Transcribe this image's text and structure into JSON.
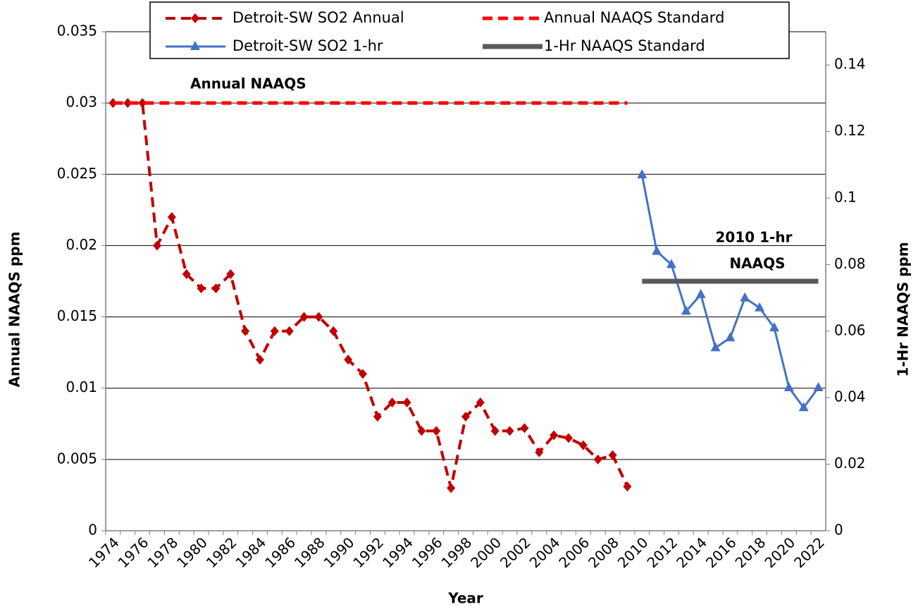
{
  "chart_data": {
    "type": "line",
    "x_label": "Year",
    "y_label": "Annual NAAQS ppm",
    "y2_label": "1-Hr NAAQS ppm",
    "annotations": [
      "Annual    NAAQS",
      "2010 1-hr",
      "NAAQS"
    ],
    "categories": [
      "1974",
      null,
      "1976",
      null,
      "1978",
      null,
      "1980",
      null,
      "1982",
      null,
      "1984",
      null,
      "1986",
      null,
      "1988",
      null,
      "1990",
      null,
      "1992",
      null,
      "1994",
      null,
      "1996",
      null,
      "1998",
      null,
      "2000",
      null,
      "2002",
      null,
      "2004",
      null,
      "2006",
      null,
      "2008",
      null,
      "2010",
      null,
      "2012",
      null,
      "2014",
      null,
      "2016",
      null,
      "2018",
      null,
      "2020",
      null,
      "2022"
    ],
    "ylim": [
      0,
      0.035
    ],
    "yticks": [
      0,
      0.005,
      0.01,
      0.015,
      0.02,
      0.025,
      0.03,
      0.035
    ],
    "y2lim": [
      0,
      0.15
    ],
    "y2ticks": [
      0,
      0.02,
      0.04,
      0.06,
      0.08,
      0.1,
      0.12,
      0.14
    ],
    "grid": true,
    "legend": "top",
    "series": [
      {
        "name": "Detroit-SW SO2 Annual",
        "color": "#c00000",
        "dash": true,
        "marker": "diamond",
        "width": 4,
        "values": [
          0.03,
          0.03,
          0.03,
          0.02,
          0.022,
          0.018,
          0.017,
          0.017,
          0.018,
          0.014,
          0.012,
          0.014,
          0.014,
          0.015,
          0.015,
          0.014,
          0.012,
          0.011,
          0.008,
          0.009,
          0.009,
          0.007,
          0.007,
          0.003,
          0.008,
          0.009,
          0.007,
          0.007,
          0.0072,
          0.0055,
          0.0067,
          0.0065,
          0.006,
          0.005,
          0.0053,
          0.0031,
          null,
          null,
          null,
          null,
          null,
          null,
          null,
          null,
          null,
          null,
          null,
          null,
          null
        ]
      },
      {
        "name": "Annual NAAQS Standard",
        "color": "#ff0000",
        "dash": true,
        "width": 5,
        "values": [
          0.03,
          0.03,
          0.03,
          0.03,
          0.03,
          0.03,
          0.03,
          0.03,
          0.03,
          0.03,
          0.03,
          0.03,
          0.03,
          0.03,
          0.03,
          0.03,
          0.03,
          0.03,
          0.03,
          0.03,
          0.03,
          0.03,
          0.03,
          0.03,
          0.03,
          0.03,
          0.03,
          0.03,
          0.03,
          0.03,
          0.03,
          0.03,
          0.03,
          0.03,
          0.03,
          0.03,
          null,
          null,
          null,
          null,
          null,
          null,
          null,
          null,
          null,
          null,
          null,
          null,
          null
        ]
      },
      {
        "name": "Detroit-SW SO2 1-hr",
        "color": "#4472c4",
        "dash": false,
        "marker": "triangle",
        "width": 3,
        "axis": "y2",
        "values": [
          null,
          null,
          null,
          null,
          null,
          null,
          null,
          null,
          null,
          null,
          null,
          null,
          null,
          null,
          null,
          null,
          null,
          null,
          null,
          null,
          null,
          null,
          null,
          null,
          null,
          null,
          null,
          null,
          null,
          null,
          null,
          null,
          null,
          null,
          null,
          null,
          0.107,
          0.084,
          0.08,
          0.066,
          0.071,
          0.055,
          0.058,
          0.07,
          0.067,
          0.061,
          0.043,
          0.037,
          0.043
        ]
      },
      {
        "name": "1-Hr NAAQS Standard",
        "color": "#595959",
        "dash": false,
        "width": 7,
        "axis": "y2",
        "values": [
          null,
          null,
          null,
          null,
          null,
          null,
          null,
          null,
          null,
          null,
          null,
          null,
          null,
          null,
          null,
          null,
          null,
          null,
          null,
          null,
          null,
          null,
          null,
          null,
          null,
          null,
          null,
          null,
          null,
          null,
          null,
          null,
          null,
          null,
          null,
          null,
          0.075,
          0.075,
          0.075,
          0.075,
          0.075,
          0.075,
          0.075,
          0.075,
          0.075,
          0.075,
          0.075,
          0.075,
          0.075
        ]
      }
    ]
  }
}
